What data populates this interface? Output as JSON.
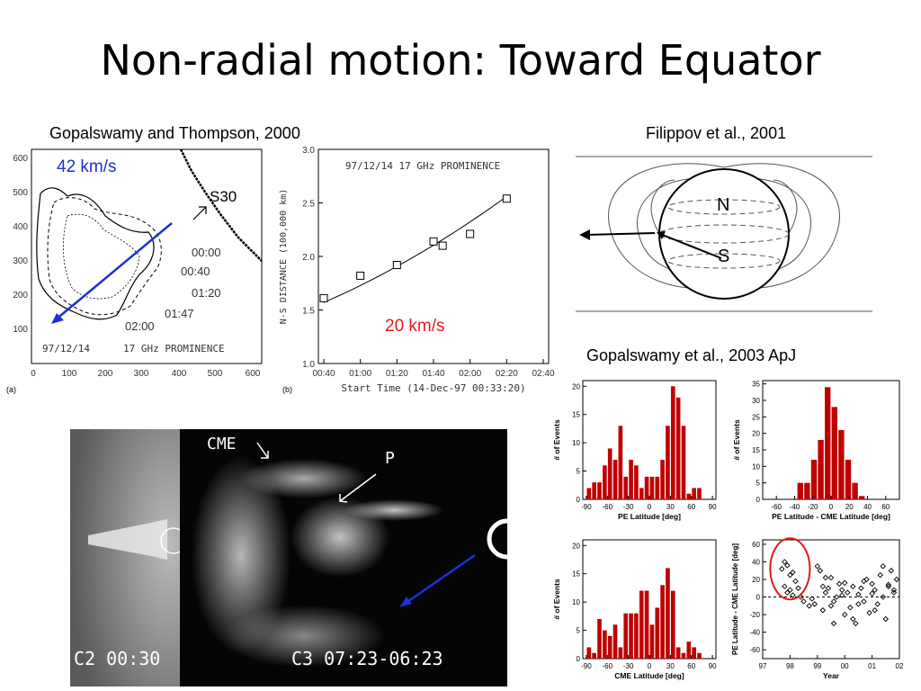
{
  "title": "Non-radial motion: Toward Equator",
  "citations": {
    "gt2000": "Gopalswamy and Thompson, 2000",
    "filippov": "Filippov et al., 2001",
    "gop2003": "Gopalswamy et al., 2003 ApJ"
  },
  "panel_a": {
    "label": "(a)",
    "speed": "42 km/s",
    "feature": "S30",
    "date": "97/12/14",
    "instrument": "17 GHz PROMINENCE",
    "times": [
      "00:00",
      "00:40",
      "01:20",
      "01:47",
      "02:00"
    ],
    "xticks": [
      "0",
      "100",
      "200",
      "300",
      "400",
      "500",
      "600"
    ],
    "yticks": [
      "100",
      "200",
      "300",
      "400",
      "500",
      "600"
    ],
    "colors": {
      "arrow": "#1f2fd6",
      "speed_text": "#1f2fd6"
    }
  },
  "chart_data": [
    {
      "type": "scatter",
      "title": "97/12/14 17 GHz PROMINENCE",
      "xlabel": "Start Time (14-Dec-97 00:33:20)",
      "ylabel": "N-S DISTANCE (100,000 km)",
      "xticks": [
        "00:40",
        "01:00",
        "01:20",
        "01:40",
        "02:00",
        "02:20",
        "02:40"
      ],
      "yticks": [
        "1.0",
        "1.5",
        "2.0",
        "2.5",
        "3.0"
      ],
      "ylim": [
        1.0,
        3.0
      ],
      "x": [
        "00:40",
        "01:00",
        "01:20",
        "01:40",
        "01:45",
        "02:00",
        "02:20"
      ],
      "y": [
        1.61,
        1.82,
        1.92,
        2.14,
        2.1,
        2.21,
        2.54
      ],
      "fit_line": true,
      "annotation": "20 km/s",
      "annotation_color": "#e11b1b",
      "label": "(b)"
    },
    {
      "type": "bar",
      "xlabel": "PE Latitude [deg]",
      "ylabel": "# of Events",
      "xticks": [
        "-90",
        "-60",
        "-30",
        "0",
        "30",
        "60",
        "90"
      ],
      "yticks": [
        "0",
        "5",
        "10",
        "15",
        "20"
      ],
      "ylim": [
        0,
        21
      ],
      "bin_width": 7.5,
      "bin_starts": [
        -90,
        -82.5,
        -75,
        -67.5,
        -60,
        -52.5,
        -45,
        -37.5,
        -30,
        -22.5,
        -15,
        -7.5,
        0,
        7.5,
        15,
        22.5,
        30,
        37.5,
        45,
        52.5,
        60,
        67.5,
        75,
        82.5
      ],
      "values": [
        2,
        3,
        3,
        6,
        9,
        7,
        13,
        4,
        7,
        6,
        2,
        4,
        4,
        4,
        7,
        13,
        20,
        18,
        13,
        1,
        2,
        2,
        0,
        0
      ],
      "color": "#c00000"
    },
    {
      "type": "bar",
      "xlabel": "PE Latitude - CME Latitude [deg]",
      "ylabel": "# of Events",
      "xticks": [
        "-60",
        "-40",
        "-20",
        "0",
        "20",
        "40",
        "60"
      ],
      "yticks": [
        "0",
        "5",
        "10",
        "15",
        "20",
        "25",
        "30",
        "35"
      ],
      "ylim": [
        0,
        36
      ],
      "bin_width": 7.5,
      "bin_starts": [
        -37.5,
        -30,
        -22.5,
        -15,
        -7.5,
        0,
        7.5,
        15,
        22.5,
        30,
        37.5
      ],
      "values": [
        5,
        5,
        12,
        18,
        34,
        28,
        21,
        12,
        5,
        1,
        0
      ],
      "color": "#c00000"
    },
    {
      "type": "bar",
      "xlabel": "CME Latitude [deg]",
      "ylabel": "# of Events",
      "xticks": [
        "-90",
        "-60",
        "-30",
        "0",
        "30",
        "60",
        "90"
      ],
      "yticks": [
        "0",
        "5",
        "10",
        "15",
        "20"
      ],
      "ylim": [
        0,
        21
      ],
      "bin_width": 7.5,
      "bin_starts": [
        -90,
        -82.5,
        -75,
        -67.5,
        -60,
        -52.5,
        -45,
        -37.5,
        -30,
        -22.5,
        -15,
        -7.5,
        0,
        7.5,
        15,
        22.5,
        30,
        37.5,
        45,
        52.5,
        60,
        67.5,
        75,
        82.5
      ],
      "values": [
        2,
        1,
        7,
        5,
        4,
        6,
        2,
        8,
        8,
        8,
        12,
        12,
        6,
        9,
        13,
        16,
        12,
        2,
        1,
        3,
        2,
        1,
        0,
        0
      ],
      "color": "#c00000"
    },
    {
      "type": "scatter",
      "xlabel": "Year",
      "ylabel": "PE Latitude - CME Latitude [deg]",
      "xticks": [
        "97",
        "98",
        "99",
        "00",
        "01",
        "02"
      ],
      "yticks": [
        "-60",
        "-40",
        "-20",
        "0",
        "20",
        "40",
        "60"
      ],
      "xlim": [
        97,
        102
      ],
      "ylim": [
        -70,
        65
      ],
      "x": [
        97.7,
        97.8,
        97.9,
        98.0,
        98.1,
        98.2,
        97.8,
        98.3,
        98.0,
        97.9,
        98.1,
        98.4,
        98.5,
        98.7,
        98.9,
        99.0,
        99.1,
        99.2,
        99.3,
        99.4,
        99.5,
        99.6,
        99.7,
        99.8,
        99.9,
        100.0,
        100.1,
        100.2,
        100.3,
        100.4,
        100.5,
        100.6,
        100.7,
        100.8,
        100.9,
        101.0,
        101.1,
        101.2,
        101.3,
        101.4,
        101.5,
        101.6,
        101.7,
        101.8,
        101.9,
        99.2,
        99.5,
        99.9,
        100.3,
        100.7,
        101.1,
        101.4,
        101.8,
        99.6,
        100.0,
        100.5,
        101.0,
        101.6,
        98.8,
        99.3
      ],
      "y": [
        32,
        40,
        36,
        25,
        28,
        18,
        12,
        10,
        8,
        5,
        2,
        0,
        -5,
        -10,
        -8,
        35,
        30,
        -15,
        5,
        10,
        22,
        -5,
        0,
        15,
        8,
        -20,
        5,
        -12,
        12,
        -30,
        3,
        10,
        -5,
        20,
        -18,
        15,
        8,
        -8,
        25,
        0,
        -25,
        12,
        30,
        5,
        20,
        12,
        -10,
        2,
        -25,
        18,
        -15,
        35,
        8,
        -30,
        16,
        -8,
        4,
        14,
        -2,
        22
      ],
      "highlight": {
        "shape": "ellipse",
        "color": "#e11b1b"
      }
    }
  ],
  "diagram": {
    "north_label": "N",
    "south_label": "S"
  },
  "cme_image": {
    "cme_label": "CME",
    "p_label": "P",
    "c2_caption": "C2 00:30",
    "c3_caption": "C3 07:23-06:23",
    "arrow_color": "#1f2fd6"
  }
}
